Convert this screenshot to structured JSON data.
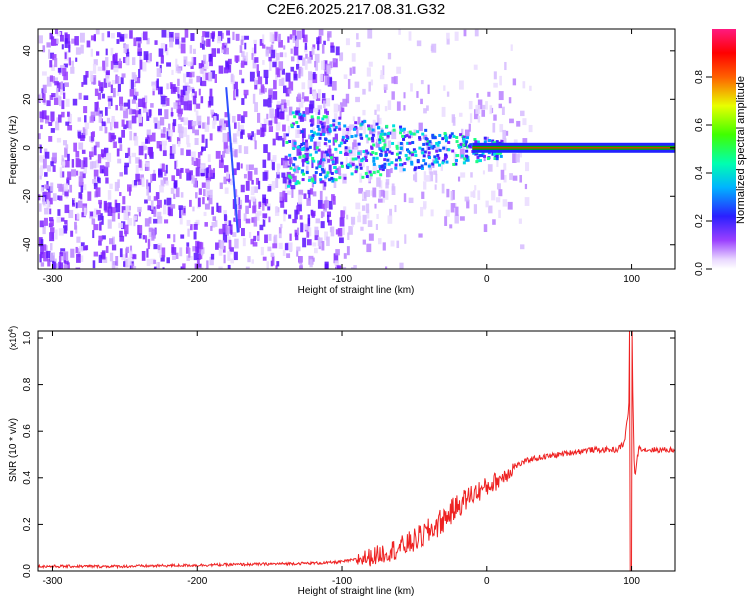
{
  "title": "C2E6.2025.217.08.31.G32",
  "colors": {
    "snr_line": "#ee2222",
    "axis": "#000000",
    "carrier_band": "#2222ff",
    "carrier_core": "#00aa00",
    "peak": "#ff2200"
  },
  "chart_data": [
    {
      "type": "heatmap",
      "title": "C2E6.2025.217.08.31.G32",
      "xlabel": "Height of straight line (km)",
      "ylabel": "Frequency (Hz)",
      "xlim": [
        -310,
        130
      ],
      "ylim": [
        -50,
        49
      ],
      "x_ticks": [
        -300,
        -200,
        -100,
        0,
        100
      ],
      "y_ticks": [
        -40,
        -20,
        0,
        20,
        40
      ],
      "colorbar": {
        "label": "Normalized spectral amplitude",
        "range": [
          0,
          1
        ],
        "ticks": [
          0.0,
          0.2,
          0.4,
          0.6,
          0.8
        ],
        "colormap": "rainbow (violet-blue-cyan-green-yellow-red-magenta)"
      },
      "features": {
        "noise_floor_region_km": [
          -310,
          -80
        ],
        "transition_region_km": [
          -80,
          10
        ],
        "carrier_frequency_hz": 0,
        "carrier_region_km": [
          10,
          130
        ],
        "tilted_streak_km": [
          -180,
          -172
        ]
      }
    },
    {
      "type": "line",
      "xlabel": "Height of straight line (km)",
      "ylabel": "SNR (10 * v/v)",
      "y_multiplier": "(x10^4)",
      "xlim": [
        -310,
        130
      ],
      "ylim": [
        0,
        1.03
      ],
      "x_ticks": [
        -300,
        -200,
        -100,
        0,
        100
      ],
      "y_ticks": [
        0.0,
        0.2,
        0.4,
        0.6,
        0.8,
        1.0
      ],
      "series": [
        {
          "x": [
            -310,
            -250,
            -200,
            -150,
            -110,
            -100,
            -90,
            -80,
            -70,
            -60,
            -50,
            -40,
            -30,
            -20,
            -10,
            0,
            10,
            20,
            30,
            40,
            50,
            60,
            70,
            80,
            90,
            95,
            98,
            100,
            102,
            105,
            110,
            120,
            130
          ],
          "values": [
            0.02,
            0.02,
            0.025,
            0.03,
            0.035,
            0.04,
            0.05,
            0.06,
            0.08,
            0.1,
            0.13,
            0.17,
            0.22,
            0.28,
            0.33,
            0.36,
            0.4,
            0.45,
            0.48,
            0.49,
            0.5,
            0.51,
            0.52,
            0.52,
            0.52,
            0.55,
            0.7,
            1.03,
            0.4,
            0.53,
            0.52,
            0.52,
            0.52
          ]
        }
      ]
    }
  ]
}
